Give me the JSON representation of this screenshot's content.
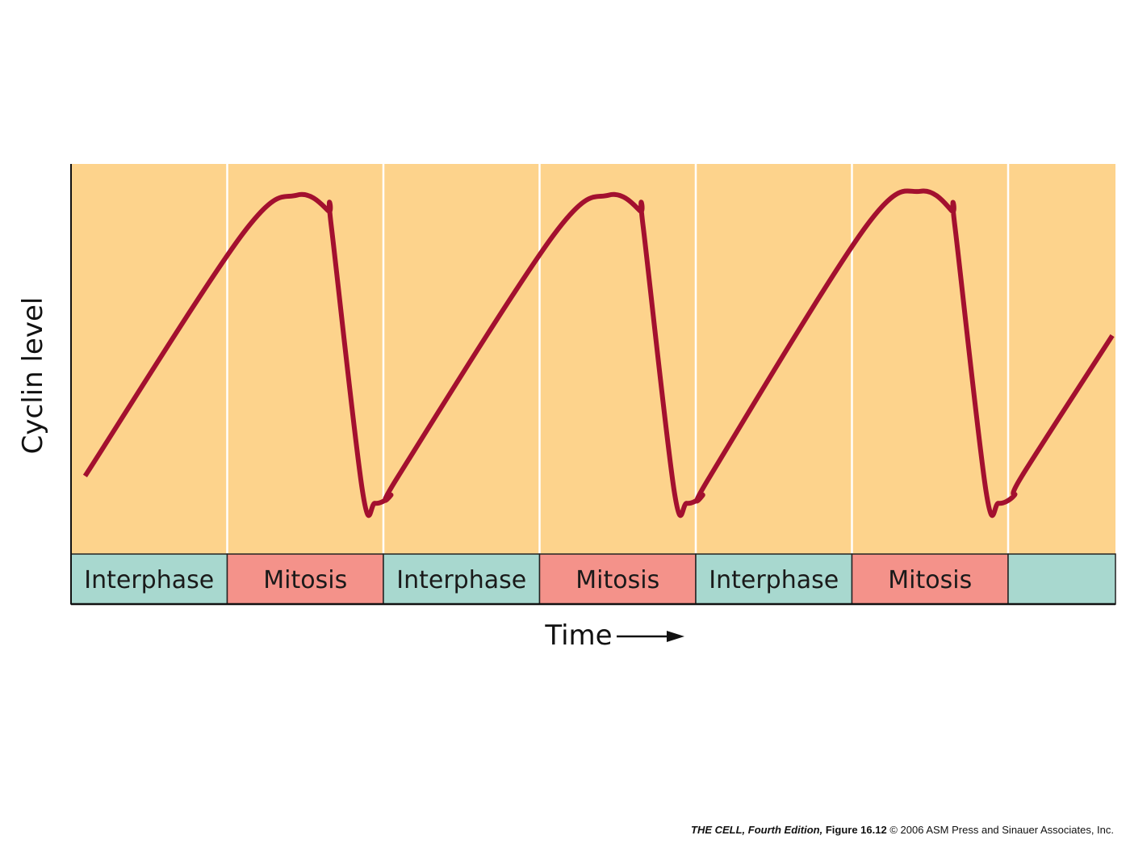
{
  "chart_data": {
    "type": "line",
    "ylabel": "Cyclin level",
    "xlabel": "Time",
    "x_arrow": true,
    "y_ticks": false,
    "grid": "vertical lines at phase boundaries",
    "phases": [
      {
        "label": "Interphase",
        "kind": "interphase"
      },
      {
        "label": "Mitosis",
        "kind": "mitosis"
      },
      {
        "label": "Interphase",
        "kind": "interphase"
      },
      {
        "label": "Mitosis",
        "kind": "mitosis"
      },
      {
        "label": "Interphase",
        "kind": "interphase"
      },
      {
        "label": "Mitosis",
        "kind": "mitosis"
      },
      {
        "label": "",
        "kind": "interphase"
      }
    ],
    "xlim": [
      0,
      6.7
    ],
    "ylim": [
      0,
      1
    ],
    "series": [
      {
        "color": "#a3102f",
        "points": [
          [
            0.09,
            0.2
          ],
          [
            1.1,
            0.82
          ],
          [
            1.45,
            0.92
          ],
          [
            1.65,
            0.88
          ],
          [
            1.67,
            0.84
          ],
          [
            1.87,
            0.16
          ],
          [
            1.95,
            0.13
          ],
          [
            2.05,
            0.15
          ],
          [
            2.1,
            0.2
          ],
          [
            3.1,
            0.82
          ],
          [
            3.45,
            0.92
          ],
          [
            3.65,
            0.88
          ],
          [
            3.67,
            0.84
          ],
          [
            3.87,
            0.16
          ],
          [
            3.95,
            0.13
          ],
          [
            4.05,
            0.15
          ],
          [
            4.1,
            0.2
          ],
          [
            5.1,
            0.84
          ],
          [
            5.45,
            0.93
          ],
          [
            5.65,
            0.88
          ],
          [
            5.67,
            0.84
          ],
          [
            5.87,
            0.16
          ],
          [
            5.95,
            0.13
          ],
          [
            6.05,
            0.15
          ],
          [
            6.1,
            0.2
          ],
          [
            6.68,
            0.56
          ]
        ]
      }
    ]
  },
  "caption": {
    "book": "THE CELL, Fourth Edition,",
    "figure": "Figure 16.12",
    "copyright": "© 2006 ASM Press and Sinauer Associates, Inc."
  },
  "colors": {
    "background": "#fdd38c",
    "interphase": "#a8d8cf",
    "mitosis": "#f4928a",
    "curve": "#a3102f",
    "divider": "#ffffff"
  }
}
